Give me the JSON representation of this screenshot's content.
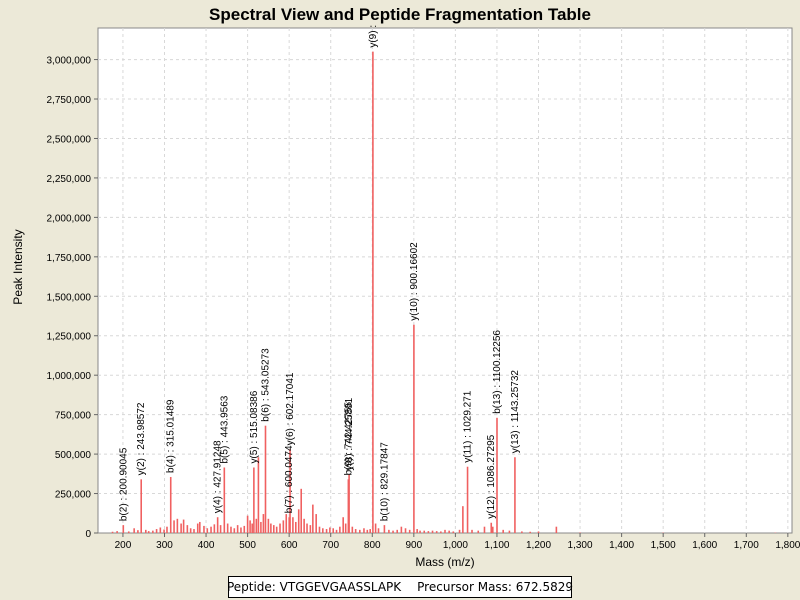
{
  "chart_data": {
    "type": "bar",
    "title": "Spectral View and Peptide Fragmentation Table",
    "xlabel": "Mass (m/z)",
    "ylabel": "Peak Intensity",
    "xlim": [
      140,
      1810
    ],
    "ylim": [
      0,
      3200000
    ],
    "x_ticks": [
      200,
      300,
      400,
      500,
      600,
      700,
      800,
      900,
      1000,
      1100,
      1200,
      1300,
      1400,
      1500,
      1600,
      1700,
      1800
    ],
    "x_tick_labels": [
      "200",
      "300",
      "400",
      "500",
      "600",
      "700",
      "800",
      "900",
      "1,000",
      "1,100",
      "1,200",
      "1,300",
      "1,400",
      "1,500",
      "1,600",
      "1,700",
      "1,800"
    ],
    "y_ticks": [
      0,
      250000,
      500000,
      750000,
      1000000,
      1250000,
      1500000,
      1750000,
      2000000,
      2250000,
      2500000,
      2750000,
      3000000
    ],
    "y_tick_labels": [
      "0",
      "250,000",
      "500,000",
      "750,000",
      "1,000,000",
      "1,250,000",
      "1,500,000",
      "1,750,000",
      "2,000,000",
      "2,250,000",
      "2,500,000",
      "2,750,000",
      "3,000,000"
    ],
    "grid": true,
    "peaks": [
      {
        "x": 175,
        "y": 8000
      },
      {
        "x": 186,
        "y": 12000
      },
      {
        "x": 200.9,
        "y": 50000
      },
      {
        "x": 214,
        "y": 10000
      },
      {
        "x": 227,
        "y": 30000
      },
      {
        "x": 236,
        "y": 18000
      },
      {
        "x": 243.99,
        "y": 340000
      },
      {
        "x": 255,
        "y": 20000
      },
      {
        "x": 262,
        "y": 12000
      },
      {
        "x": 272,
        "y": 15000
      },
      {
        "x": 281,
        "y": 25000
      },
      {
        "x": 290,
        "y": 35000
      },
      {
        "x": 299,
        "y": 22000
      },
      {
        "x": 306,
        "y": 40000
      },
      {
        "x": 315.01,
        "y": 355000
      },
      {
        "x": 323,
        "y": 80000
      },
      {
        "x": 331,
        "y": 90000
      },
      {
        "x": 340,
        "y": 60000
      },
      {
        "x": 346,
        "y": 85000
      },
      {
        "x": 355,
        "y": 50000
      },
      {
        "x": 363,
        "y": 30000
      },
      {
        "x": 371,
        "y": 25000
      },
      {
        "x": 380,
        "y": 60000
      },
      {
        "x": 385,
        "y": 70000
      },
      {
        "x": 395,
        "y": 45000
      },
      {
        "x": 403,
        "y": 30000
      },
      {
        "x": 412,
        "y": 40000
      },
      {
        "x": 420,
        "y": 55000
      },
      {
        "x": 427.91,
        "y": 100000
      },
      {
        "x": 435,
        "y": 50000
      },
      {
        "x": 443.96,
        "y": 415000
      },
      {
        "x": 452,
        "y": 60000
      },
      {
        "x": 460,
        "y": 40000
      },
      {
        "x": 468,
        "y": 30000
      },
      {
        "x": 476,
        "y": 50000
      },
      {
        "x": 484,
        "y": 35000
      },
      {
        "x": 492,
        "y": 45000
      },
      {
        "x": 500,
        "y": 110000
      },
      {
        "x": 506,
        "y": 80000
      },
      {
        "x": 511,
        "y": 60000
      },
      {
        "x": 515.08,
        "y": 415000
      },
      {
        "x": 521,
        "y": 90000
      },
      {
        "x": 526,
        "y": 480000
      },
      {
        "x": 532,
        "y": 70000
      },
      {
        "x": 538,
        "y": 120000
      },
      {
        "x": 543.05,
        "y": 680000
      },
      {
        "x": 550,
        "y": 90000
      },
      {
        "x": 556,
        "y": 60000
      },
      {
        "x": 563,
        "y": 50000
      },
      {
        "x": 570,
        "y": 40000
      },
      {
        "x": 578,
        "y": 60000
      },
      {
        "x": 586,
        "y": 80000
      },
      {
        "x": 593,
        "y": 120000
      },
      {
        "x": 600.05,
        "y": 100000
      },
      {
        "x": 602.17,
        "y": 530000
      },
      {
        "x": 609,
        "y": 100000
      },
      {
        "x": 616,
        "y": 70000
      },
      {
        "x": 623,
        "y": 150000
      },
      {
        "x": 629,
        "y": 280000
      },
      {
        "x": 636,
        "y": 90000
      },
      {
        "x": 643,
        "y": 60000
      },
      {
        "x": 651,
        "y": 50000
      },
      {
        "x": 657,
        "y": 180000
      },
      {
        "x": 665,
        "y": 120000
      },
      {
        "x": 673,
        "y": 40000
      },
      {
        "x": 681,
        "y": 30000
      },
      {
        "x": 690,
        "y": 25000
      },
      {
        "x": 698,
        "y": 35000
      },
      {
        "x": 706,
        "y": 30000
      },
      {
        "x": 714,
        "y": 20000
      },
      {
        "x": 722,
        "y": 40000
      },
      {
        "x": 730,
        "y": 100000
      },
      {
        "x": 736,
        "y": 60000
      },
      {
        "x": 742.43,
        "y": 340000
      },
      {
        "x": 744.25,
        "y": 370000
      },
      {
        "x": 752,
        "y": 40000
      },
      {
        "x": 760,
        "y": 25000
      },
      {
        "x": 770,
        "y": 20000
      },
      {
        "x": 780,
        "y": 30000
      },
      {
        "x": 788,
        "y": 20000
      },
      {
        "x": 795,
        "y": 25000
      },
      {
        "x": 801.5,
        "y": 3050000
      },
      {
        "x": 808,
        "y": 60000
      },
      {
        "x": 815,
        "y": 30000
      },
      {
        "x": 829.18,
        "y": 50000
      },
      {
        "x": 840,
        "y": 20000
      },
      {
        "x": 850,
        "y": 15000
      },
      {
        "x": 860,
        "y": 20000
      },
      {
        "x": 870,
        "y": 40000
      },
      {
        "x": 880,
        "y": 30000
      },
      {
        "x": 890,
        "y": 20000
      },
      {
        "x": 900.17,
        "y": 1320000
      },
      {
        "x": 908,
        "y": 25000
      },
      {
        "x": 915,
        "y": 15000
      },
      {
        "x": 925,
        "y": 15000
      },
      {
        "x": 935,
        "y": 12000
      },
      {
        "x": 945,
        "y": 15000
      },
      {
        "x": 955,
        "y": 12000
      },
      {
        "x": 965,
        "y": 10000
      },
      {
        "x": 975,
        "y": 20000
      },
      {
        "x": 985,
        "y": 15000
      },
      {
        "x": 995,
        "y": 10000
      },
      {
        "x": 1010,
        "y": 20000
      },
      {
        "x": 1018,
        "y": 170000
      },
      {
        "x": 1029.27,
        "y": 420000
      },
      {
        "x": 1040,
        "y": 20000
      },
      {
        "x": 1055,
        "y": 15000
      },
      {
        "x": 1070,
        "y": 40000
      },
      {
        "x": 1086.27,
        "y": 65000
      },
      {
        "x": 1090,
        "y": 40000
      },
      {
        "x": 1100.12,
        "y": 730000
      },
      {
        "x": 1115,
        "y": 20000
      },
      {
        "x": 1130,
        "y": 15000
      },
      {
        "x": 1143.26,
        "y": 480000
      },
      {
        "x": 1160,
        "y": 10000
      },
      {
        "x": 1180,
        "y": 8000
      },
      {
        "x": 1200,
        "y": 10000
      },
      {
        "x": 1243,
        "y": 40000
      },
      {
        "x": 1300,
        "y": 3000
      },
      {
        "x": 1500,
        "y": 2000
      },
      {
        "x": 1770,
        "y": 2000
      }
    ],
    "annotations": [
      {
        "x": 200.9,
        "y": 50000,
        "label": "b(2) : 200.90045"
      },
      {
        "x": 243.99,
        "y": 340000,
        "label": "y(2) : 243.98572"
      },
      {
        "x": 315.01,
        "y": 355000,
        "label": "b(4) : 315.01489"
      },
      {
        "x": 427.91,
        "y": 100000,
        "label": "y(4) : 427.91248"
      },
      {
        "x": 443.96,
        "y": 415000,
        "label": "b(5) : 443.9563"
      },
      {
        "x": 515.08,
        "y": 415000,
        "label": "y(5) : 515.08386"
      },
      {
        "x": 543.05,
        "y": 680000,
        "label": "b(6) : 543.05273"
      },
      {
        "x": 600.05,
        "y": 100000,
        "label": "b(7) : 600.0474"
      },
      {
        "x": 602.17,
        "y": 530000,
        "label": "y(6) : 602.17041"
      },
      {
        "x": 742.43,
        "y": 340000,
        "label": "b(9) : 742.42755"
      },
      {
        "x": 744.25,
        "y": 370000,
        "label": "y(8) : 744.25891"
      },
      {
        "x": 801.5,
        "y": 3050000,
        "label": "y(9) :"
      },
      {
        "x": 829.18,
        "y": 50000,
        "label": "b(10) : 829.17847"
      },
      {
        "x": 900.17,
        "y": 1320000,
        "label": "y(10) : 900.16602"
      },
      {
        "x": 1029.27,
        "y": 420000,
        "label": "y(11) : 1029.271"
      },
      {
        "x": 1086.27,
        "y": 65000,
        "label": "y(12) : 1086.27295"
      },
      {
        "x": 1100.12,
        "y": 730000,
        "label": "b(13) : 1100.12256"
      },
      {
        "x": 1143.26,
        "y": 480000,
        "label": "y(13) : 1143.25732"
      }
    ],
    "colors": {
      "peak": "#f06060",
      "plot_bg": "#ffffff",
      "grid": "#d8d8d8",
      "background": "#ece9d8"
    }
  },
  "footer": {
    "peptide_label": "Peptide: VTGGEVGAASSLAPK",
    "precursor_label": "Precursor Mass: 672.5829"
  }
}
